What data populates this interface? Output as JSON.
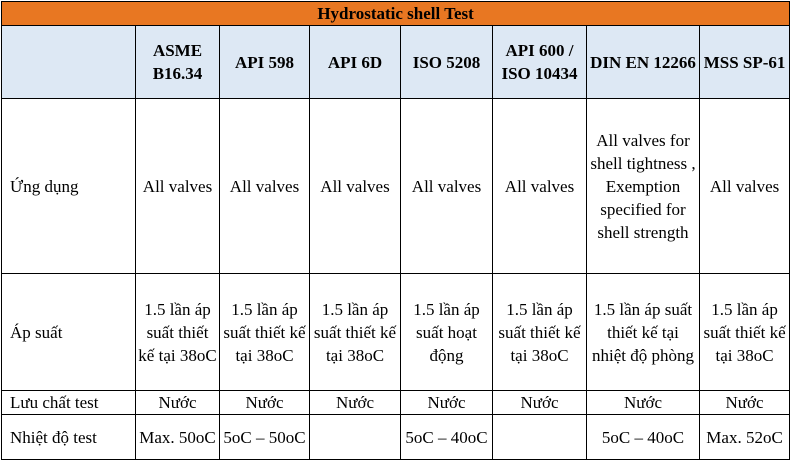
{
  "title": "Hydrostatic shell Test",
  "headers": [
    "",
    "ASME B16.34",
    "API 598",
    "API 6D",
    "ISO 5208",
    "API 600 / ISO 10434",
    "DIN EN 12266",
    "MSS SP-61"
  ],
  "rows": [
    {
      "label": "Ứng dụng",
      "cells": [
        "All valves",
        "All valves",
        "All valves",
        "All valves",
        "All valves",
        "All valves for shell tightness , Exemption specified for shell strength",
        "All valves"
      ]
    },
    {
      "label": "Áp suất",
      "cells": [
        "1.5 lần áp suất thiết kế tại 38oC",
        "1.5 lần áp suất thiết kế tại 38oC",
        "1.5 lần áp suất thiết kế tại 38oC",
        "1.5 lần áp suất hoạt động",
        "1.5 lần áp suất thiết kế tại 38oC",
        "1.5 lần áp suất thiết kế tại nhiệt độ phòng",
        "1.5 lần áp suất thiết kế tại 38oC"
      ]
    },
    {
      "label": "Lưu chất test",
      "cells": [
        "Nước",
        "Nước",
        "Nước",
        "Nước",
        "Nước",
        "Nước",
        "Nước"
      ]
    },
    {
      "label": "Nhiệt độ test",
      "cells": [
        "Max. 50oC",
        "5oC – 50oC",
        "",
        "5oC – 40oC",
        "",
        "5oC – 40oC",
        "Max. 52oC"
      ]
    }
  ]
}
